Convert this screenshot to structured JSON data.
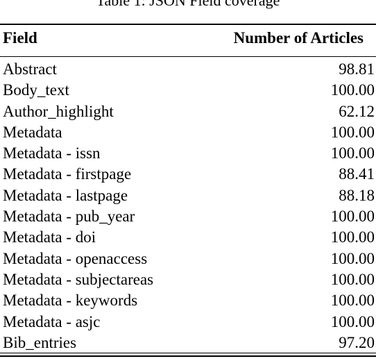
{
  "caption": "Table 1: JSON Field coverage",
  "columns": {
    "field": "Field",
    "count": "Number of Articles"
  },
  "rows": [
    {
      "field": "Abstract",
      "value": "98.81"
    },
    {
      "field": "Body_text",
      "value": "100.00"
    },
    {
      "field": "Author_highlight",
      "value": "62.12"
    },
    {
      "field": "Metadata",
      "value": "100.00"
    },
    {
      "field": "Metadata - issn",
      "value": "100.00"
    },
    {
      "field": "Metadata - firstpage",
      "value": "88.41"
    },
    {
      "field": "Metadata - lastpage",
      "value": "88.18"
    },
    {
      "field": "Metadata - pub_year",
      "value": "100.00"
    },
    {
      "field": "Metadata - doi",
      "value": "100.00"
    },
    {
      "field": "Metadata - openaccess",
      "value": "100.00"
    },
    {
      "field": "Metadata - subjectareas",
      "value": "100.00"
    },
    {
      "field": "Metadata - keywords",
      "value": "100.00"
    },
    {
      "field": "Metadata - asjc",
      "value": "100.00"
    },
    {
      "field": "Bib_entries",
      "value": "97.20"
    }
  ]
}
